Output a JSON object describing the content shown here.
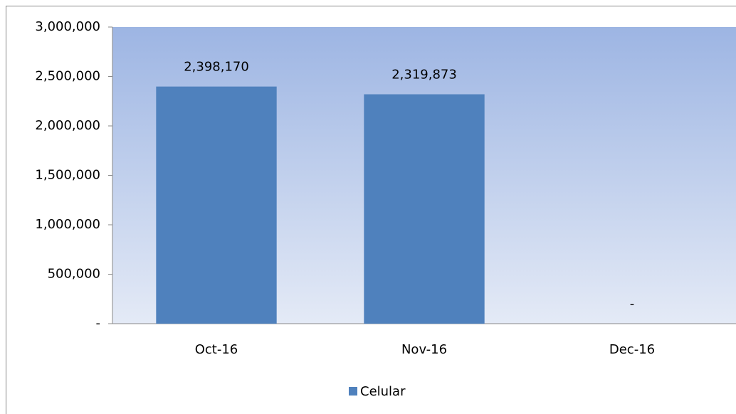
{
  "chart_data": {
    "type": "bar",
    "categories": [
      "Oct-16",
      "Nov-16",
      "Dec-16"
    ],
    "series": [
      {
        "name": "Celular",
        "color": "#4f81bd",
        "values": [
          2398170,
          2319873,
          0
        ],
        "value_labels": [
          "2,398,170",
          "2,319,873",
          "-"
        ]
      }
    ],
    "ylim": [
      0,
      3000000
    ],
    "yticks": [
      {
        "value": 0,
        "label": "-"
      },
      {
        "value": 500000,
        "label": "500,000"
      },
      {
        "value": 1000000,
        "label": "1,000,000"
      },
      {
        "value": 1500000,
        "label": "1,500,000"
      },
      {
        "value": 2000000,
        "label": "2,000,000"
      },
      {
        "value": 2500000,
        "label": "2,500,000"
      },
      {
        "value": 3000000,
        "label": "3,000,000"
      }
    ],
    "legend": "bottom"
  }
}
